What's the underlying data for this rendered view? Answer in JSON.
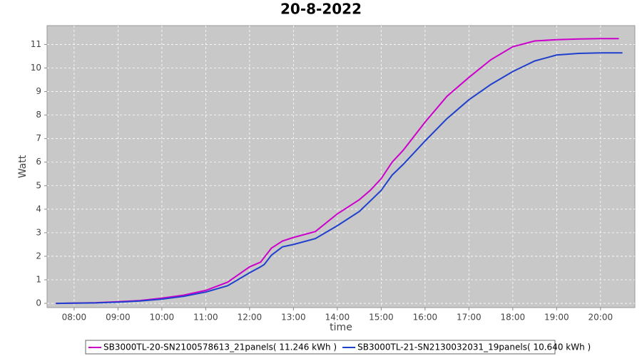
{
  "chart_data": {
    "type": "line",
    "title": "20-8-2022",
    "x_label": "time",
    "y_label": "Watt",
    "series": [
      {
        "name": "SB3000TL-20-SN2100578613_21panels( 11.246 kWh )",
        "color": "#cc00cc",
        "x": [
          "07:35",
          "08:00",
          "08:30",
          "09:00",
          "09:30",
          "10:00",
          "10:30",
          "11:00",
          "11:30",
          "12:00",
          "12:15",
          "12:30",
          "12:45",
          "13:00",
          "13:30",
          "14:00",
          "14:30",
          "14:45",
          "15:00",
          "15:15",
          "15:30",
          "16:00",
          "16:30",
          "17:00",
          "17:30",
          "18:00",
          "18:30",
          "19:00",
          "19:30",
          "20:00",
          "20:25"
        ],
        "values": [
          0,
          0.01,
          0.03,
          0.07,
          0.12,
          0.22,
          0.35,
          0.55,
          0.9,
          1.55,
          1.75,
          2.35,
          2.65,
          2.8,
          3.05,
          3.8,
          4.4,
          4.8,
          5.3,
          6.0,
          6.5,
          7.7,
          8.8,
          9.6,
          10.35,
          10.9,
          11.15,
          11.2,
          11.23,
          11.25,
          11.25
        ]
      },
      {
        "name": "SB3000TL-21-SN2130032031_19panels( 10.640 kWh )",
        "color": "#1f3fcc",
        "x": [
          "07:35",
          "08:00",
          "08:30",
          "09:00",
          "09:30",
          "10:00",
          "10:30",
          "11:00",
          "11:30",
          "12:00",
          "12:15",
          "12:20",
          "12:30",
          "12:45",
          "13:00",
          "13:30",
          "14:00",
          "14:30",
          "14:45",
          "15:00",
          "15:15",
          "15:30",
          "16:00",
          "16:30",
          "17:00",
          "17:30",
          "18:00",
          "18:30",
          "19:00",
          "19:30",
          "20:00",
          "20:30"
        ],
        "values": [
          0,
          0.01,
          0.02,
          0.05,
          0.1,
          0.18,
          0.3,
          0.48,
          0.75,
          1.3,
          1.55,
          1.65,
          2.05,
          2.4,
          2.5,
          2.75,
          3.3,
          3.9,
          4.35,
          4.8,
          5.45,
          5.9,
          6.9,
          7.85,
          8.65,
          9.3,
          9.85,
          10.3,
          10.55,
          10.62,
          10.64,
          10.64
        ]
      }
    ],
    "xlim": [
      "07:23",
      "20:47"
    ],
    "xticks": [
      "08:00",
      "09:00",
      "10:00",
      "11:00",
      "12:00",
      "13:00",
      "14:00",
      "15:00",
      "16:00",
      "17:00",
      "18:00",
      "19:00",
      "20:00"
    ],
    "ylim": [
      -0.18,
      11.8
    ],
    "yticks": [
      0,
      1,
      2,
      3,
      4,
      5,
      6,
      7,
      8,
      9,
      10,
      11
    ],
    "grid": true,
    "legend": "bottom"
  }
}
